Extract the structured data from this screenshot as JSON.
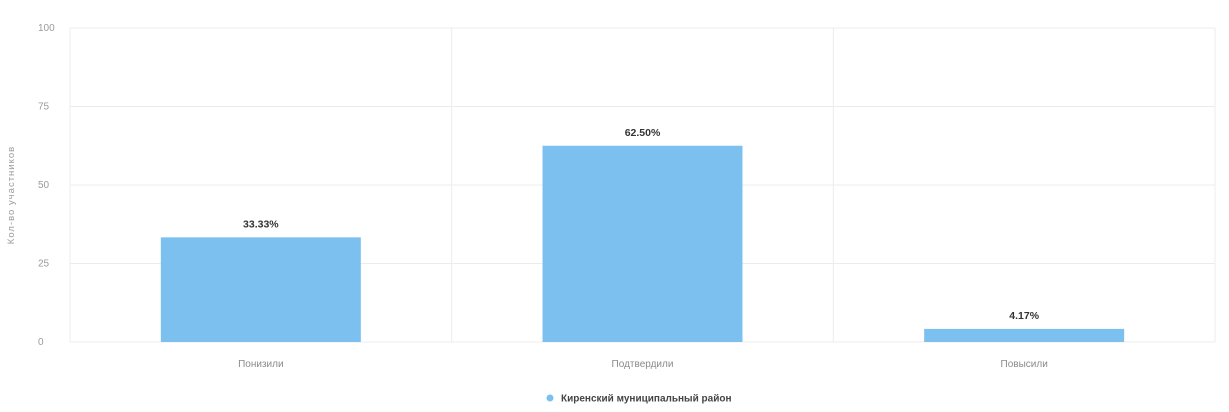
{
  "chart_data": {
    "type": "bar",
    "title": "",
    "xlabel": "",
    "ylabel": "Кол-во участников",
    "ylim": [
      0,
      100
    ],
    "yticks": [
      0,
      25,
      50,
      75,
      100
    ],
    "categories": [
      "Понизили",
      "Подтвердили",
      "Повысили"
    ],
    "series": [
      {
        "name": "Киренский муниципальный район",
        "color": "#7cc0f0",
        "values": [
          33.33,
          62.5,
          4.17
        ],
        "labels": [
          "33.33%",
          "62.50%",
          "4.17%"
        ]
      }
    ],
    "grid": true,
    "legend": "bottom-center"
  }
}
